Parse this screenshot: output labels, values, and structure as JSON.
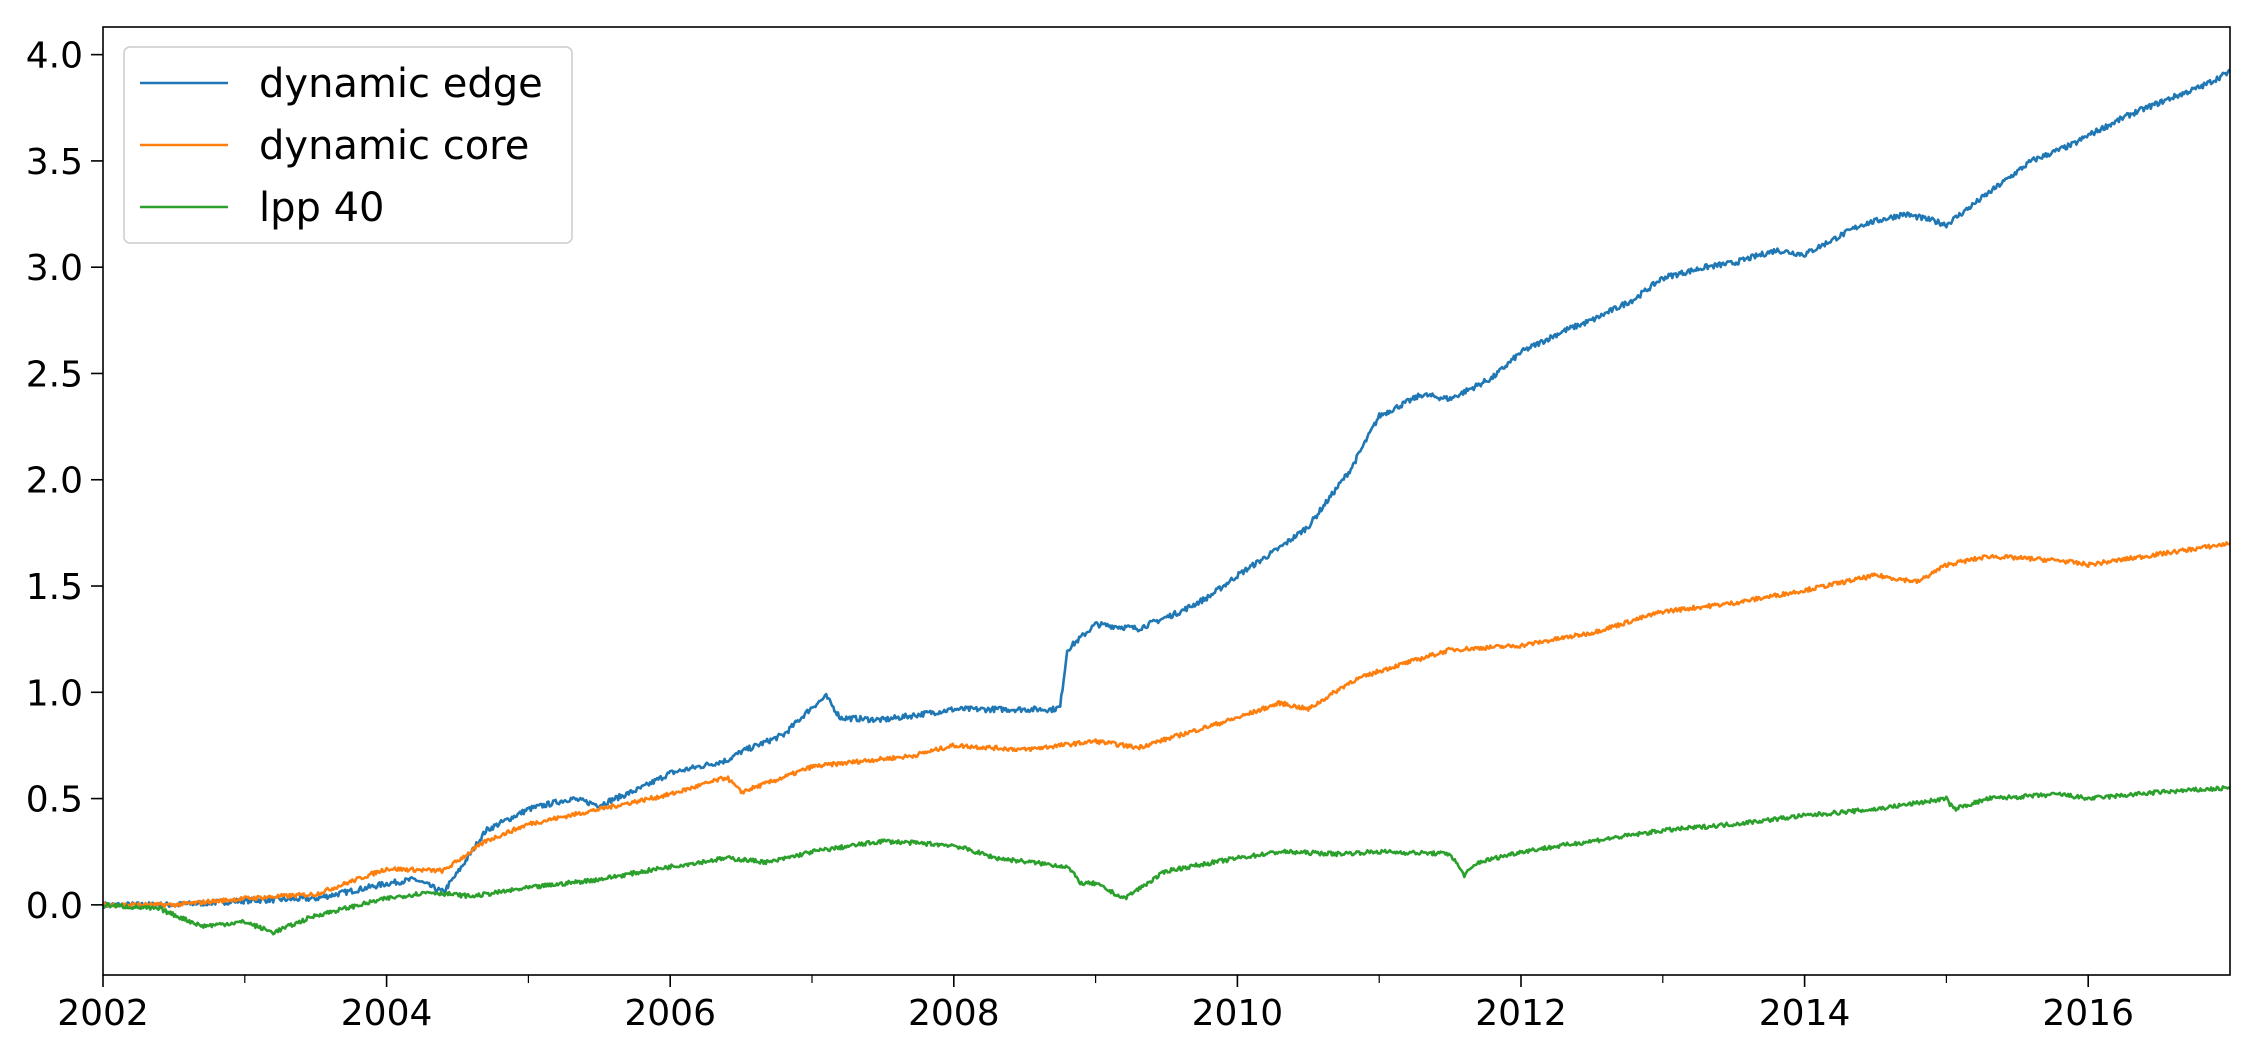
{
  "chart_data": {
    "type": "line",
    "title": "",
    "xlabel": "",
    "ylabel": "",
    "xlim": [
      2002.0,
      2017.0
    ],
    "ylim": [
      -0.33,
      4.13
    ],
    "x_ticks": [
      2002,
      2004,
      2006,
      2008,
      2010,
      2012,
      2014,
      2016
    ],
    "x_tick_labels": [
      "2002",
      "2004",
      "2006",
      "2008",
      "2010",
      "2012",
      "2014",
      "2016"
    ],
    "y_ticks": [
      0.0,
      0.5,
      1.0,
      1.5,
      2.0,
      2.5,
      3.0,
      3.5,
      4.0
    ],
    "y_tick_labels": [
      "0.0",
      "0.5",
      "1.0",
      "1.5",
      "2.0",
      "2.5",
      "3.0",
      "3.5",
      "4.0"
    ],
    "grid": false,
    "legend": "upper-left",
    "series": [
      {
        "name": "dynamic edge",
        "color": "#1f77b4",
        "x": [
          2002.0,
          2002.5,
          2003.0,
          2003.5,
          2004.0,
          2004.2,
          2004.4,
          2004.5,
          2004.7,
          2005.0,
          2005.3,
          2005.5,
          2005.8,
          2006.0,
          2006.4,
          2006.5,
          2006.8,
          2007.0,
          2007.1,
          2007.2,
          2007.5,
          2007.8,
          2008.0,
          2008.4,
          2008.7,
          2008.75,
          2008.8,
          2009.0,
          2009.3,
          2009.6,
          2009.8,
          2010.0,
          2010.3,
          2010.5,
          2010.8,
          2011.0,
          2011.3,
          2011.5,
          2011.8,
          2012.0,
          2012.3,
          2012.5,
          2012.8,
          2013.0,
          2013.3,
          2013.5,
          2013.8,
          2014.0,
          2014.4,
          2014.7,
          2014.9,
          2015.0,
          2015.3,
          2015.6,
          2015.9,
          2016.0,
          2016.3,
          2016.6,
          2016.8,
          2017.0
        ],
        "values": [
          0.0,
          0.0,
          0.02,
          0.03,
          0.1,
          0.12,
          0.06,
          0.15,
          0.35,
          0.45,
          0.5,
          0.47,
          0.55,
          0.62,
          0.68,
          0.72,
          0.8,
          0.93,
          0.98,
          0.88,
          0.87,
          0.9,
          0.92,
          0.92,
          0.92,
          0.93,
          1.2,
          1.32,
          1.3,
          1.38,
          1.45,
          1.55,
          1.68,
          1.78,
          2.05,
          2.3,
          2.4,
          2.38,
          2.48,
          2.6,
          2.7,
          2.75,
          2.85,
          2.95,
          3.0,
          3.02,
          3.08,
          3.06,
          3.2,
          3.25,
          3.22,
          3.2,
          3.35,
          3.5,
          3.58,
          3.62,
          3.72,
          3.8,
          3.85,
          3.92
        ]
      },
      {
        "name": "dynamic core",
        "color": "#ff7f0e",
        "x": [
          2002.0,
          2002.5,
          2003.0,
          2003.5,
          2004.0,
          2004.4,
          2004.7,
          2005.0,
          2005.5,
          2006.0,
          2006.4,
          2006.5,
          2006.8,
          2007.0,
          2007.4,
          2007.7,
          2008.0,
          2008.5,
          2009.0,
          2009.3,
          2009.7,
          2010.0,
          2010.3,
          2010.5,
          2010.8,
          2011.0,
          2011.5,
          2012.0,
          2012.5,
          2013.0,
          2013.5,
          2014.0,
          2014.5,
          2014.8,
          2015.0,
          2015.3,
          2015.8,
          2016.0,
          2016.5,
          2017.0
        ],
        "values": [
          0.0,
          0.0,
          0.03,
          0.05,
          0.17,
          0.16,
          0.3,
          0.38,
          0.45,
          0.52,
          0.6,
          0.53,
          0.6,
          0.65,
          0.68,
          0.7,
          0.75,
          0.73,
          0.77,
          0.74,
          0.82,
          0.88,
          0.95,
          0.92,
          1.05,
          1.1,
          1.2,
          1.22,
          1.28,
          1.38,
          1.42,
          1.48,
          1.55,
          1.52,
          1.6,
          1.64,
          1.62,
          1.6,
          1.65,
          1.7
        ]
      },
      {
        "name": "lpp 40",
        "color": "#2ca02c",
        "x": [
          2002.0,
          2002.4,
          2002.7,
          2003.0,
          2003.2,
          2003.5,
          2004.0,
          2004.3,
          2004.6,
          2005.0,
          2005.5,
          2006.0,
          2006.4,
          2006.7,
          2007.0,
          2007.5,
          2008.0,
          2008.3,
          2008.8,
          2008.9,
          2009.0,
          2009.2,
          2009.5,
          2010.0,
          2010.3,
          2010.7,
          2011.0,
          2011.5,
          2011.6,
          2011.7,
          2012.0,
          2012.5,
          2013.0,
          2013.5,
          2014.0,
          2014.5,
          2015.0,
          2015.05,
          2015.3,
          2015.8,
          2016.0,
          2016.5,
          2017.0
        ],
        "values": [
          0.0,
          -0.02,
          -0.1,
          -0.08,
          -0.13,
          -0.05,
          0.03,
          0.06,
          0.04,
          0.08,
          0.12,
          0.18,
          0.22,
          0.2,
          0.25,
          0.3,
          0.28,
          0.22,
          0.18,
          0.1,
          0.1,
          0.03,
          0.16,
          0.22,
          0.25,
          0.24,
          0.25,
          0.24,
          0.14,
          0.2,
          0.25,
          0.3,
          0.35,
          0.38,
          0.42,
          0.45,
          0.5,
          0.45,
          0.5,
          0.52,
          0.5,
          0.53,
          0.55
        ]
      }
    ]
  }
}
